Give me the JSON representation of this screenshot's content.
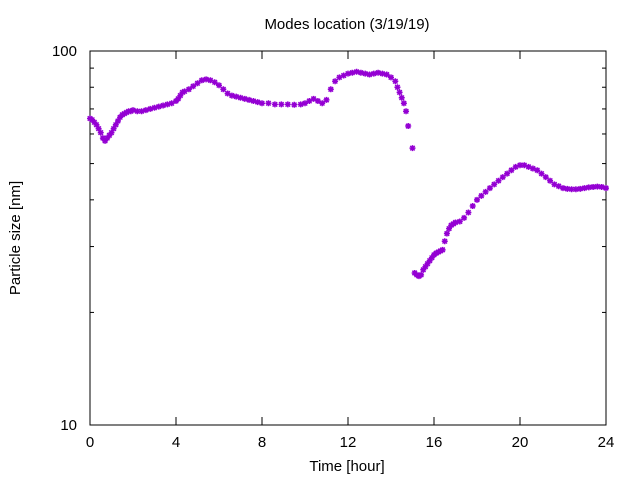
{
  "chart_data": {
    "type": "scatter",
    "title": "Modes location (3/19/19)",
    "xlabel": "Time [hour]",
    "ylabel": "Particle size [nm]",
    "xlim": [
      0,
      24
    ],
    "ylim": [
      10,
      100
    ],
    "yscale": "log",
    "x_ticks": [
      0,
      4,
      8,
      12,
      16,
      20,
      24
    ],
    "y_ticks": [
      10,
      100
    ],
    "grid": false,
    "marker": "asterisk",
    "color": "#9400d3",
    "series": [
      {
        "x": [
          0.0,
          0.1,
          0.2,
          0.3,
          0.4,
          0.5,
          0.6,
          0.7,
          0.8,
          0.9,
          1.0,
          1.1,
          1.2,
          1.3,
          1.4,
          1.5,
          1.6,
          1.7,
          1.8,
          1.9,
          2.0,
          2.2,
          2.4,
          2.6,
          2.8,
          3.0,
          3.2,
          3.4,
          3.6,
          3.8,
          4.0,
          4.1,
          4.2,
          4.3,
          4.4,
          4.6,
          4.8,
          5.0,
          5.2,
          5.4,
          5.6,
          5.8,
          6.0,
          6.2,
          6.4,
          6.6,
          6.8,
          7.0,
          7.2,
          7.4,
          7.6,
          7.8,
          8.0,
          8.3,
          8.6,
          8.9,
          9.2,
          9.5,
          9.8,
          10.0,
          10.2,
          10.4,
          10.6,
          10.8,
          11.0,
          11.2,
          11.4,
          11.6,
          11.8,
          12.0,
          12.2,
          12.4,
          12.6,
          12.8,
          13.0,
          13.2,
          13.4,
          13.6,
          13.8,
          14.0,
          14.2,
          14.3,
          14.4,
          14.5,
          14.6,
          14.7,
          14.8,
          15.0,
          15.1,
          15.2,
          15.3,
          15.4,
          15.5,
          15.6,
          15.7,
          15.8,
          15.9,
          16.0,
          16.1,
          16.2,
          16.3,
          16.4,
          16.5,
          16.6,
          16.7,
          16.8,
          16.9,
          17.0,
          17.2,
          17.4,
          17.6,
          17.8,
          18.0,
          18.2,
          18.4,
          18.6,
          18.8,
          19.0,
          19.2,
          19.4,
          19.6,
          19.8,
          20.0,
          20.2,
          20.4,
          20.6,
          20.8,
          21.0,
          21.2,
          21.4,
          21.6,
          21.8,
          22.0,
          22.2,
          22.4,
          22.6,
          22.8,
          23.0,
          23.2,
          23.4,
          23.6,
          23.8,
          24.0
        ],
        "y": [
          66,
          65.5,
          64.5,
          63.5,
          62,
          60.5,
          58.5,
          57.5,
          58.5,
          59.5,
          60.5,
          62,
          63.5,
          65,
          66.5,
          67.5,
          68,
          68.5,
          69,
          69,
          69.5,
          69,
          69,
          69.5,
          70,
          70.5,
          71,
          71.5,
          72,
          72.5,
          73.5,
          74.5,
          76,
          77.5,
          78,
          79,
          80.5,
          82,
          83.5,
          84,
          83.5,
          82.5,
          81,
          79,
          77,
          76,
          75.5,
          75,
          74.5,
          74,
          73.5,
          73,
          72.5,
          72.5,
          72,
          72,
          72,
          71.8,
          72,
          72.5,
          73.5,
          74.5,
          73.5,
          72.5,
          74,
          79,
          83,
          85,
          86,
          87,
          87.5,
          88,
          87.5,
          87,
          86.5,
          87,
          87.5,
          87,
          86.5,
          85,
          83,
          80,
          77.5,
          75,
          72.5,
          69,
          63,
          55,
          25.5,
          25.2,
          25,
          25.2,
          26,
          26.5,
          27,
          27.5,
          28,
          28.5,
          28.8,
          29,
          29.2,
          29.4,
          31,
          32.5,
          33.5,
          34.2,
          34.5,
          34.8,
          35,
          35.8,
          37,
          38.5,
          40,
          41,
          42,
          43,
          44,
          45,
          46,
          47,
          48,
          49,
          49.5,
          49.5,
          49,
          48.5,
          48,
          47,
          46,
          45,
          44,
          43.5,
          43,
          42.8,
          42.7,
          42.7,
          42.8,
          43,
          43.2,
          43.3,
          43.4,
          43.3,
          43
        ]
      }
    ]
  }
}
